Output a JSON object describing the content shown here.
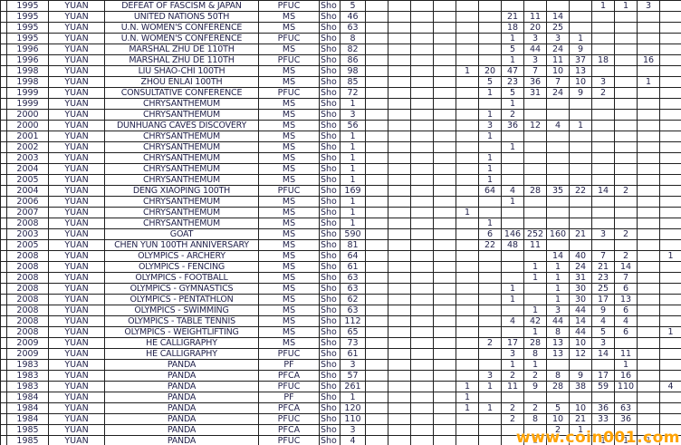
{
  "watermark": {
    "text": "www.coin001.com",
    "color": "#FFA200"
  },
  "table": {
    "currency_label": "YUAN",
    "sho_label": "Sho",
    "num_value_columns": 14,
    "type_codes_seen": [
      "PFUC",
      "MS",
      "PF",
      "PFCA"
    ],
    "rows": [
      {
        "year": "1995",
        "desc": "DEFEAT OF FASCISM & JAPAN",
        "type": "PFUC",
        "count": "5",
        "values": {
          "11": "1",
          "12": "1",
          "13": "3"
        }
      },
      {
        "year": "1995",
        "desc": "UNITED NATIONS 50TH",
        "type": "MS",
        "count": "46",
        "values": {
          "7": "21",
          "8": "11",
          "9": "14"
        }
      },
      {
        "year": "1995",
        "desc": "U.N. WOMEN'S CONFERENCE",
        "type": "MS",
        "count": "63",
        "values": {
          "7": "18",
          "8": "20",
          "9": "25"
        }
      },
      {
        "year": "1995",
        "desc": "U.N. WOMEN'S CONFERENCE",
        "type": "PFUC",
        "count": "8",
        "values": {
          "7": "1",
          "8": "3",
          "9": "3",
          "10": "1"
        }
      },
      {
        "year": "1996",
        "desc": "MARSHAL ZHU DE 110TH",
        "type": "MS",
        "count": "82",
        "values": {
          "7": "5",
          "8": "44",
          "9": "24",
          "10": "9"
        }
      },
      {
        "year": "1996",
        "desc": "MARSHAL ZHU DE 110TH",
        "type": "PFUC",
        "count": "86",
        "values": {
          "7": "1",
          "8": "3",
          "9": "11",
          "10": "37",
          "11": "18",
          "13": "16"
        }
      },
      {
        "year": "1998",
        "desc": "LIU SHAO-CHI 100TH",
        "type": "MS",
        "count": "98",
        "values": {
          "5": "1",
          "6": "20",
          "7": "47",
          "8": "7",
          "9": "10",
          "10": "13"
        }
      },
      {
        "year": "1998",
        "desc": "ZHOU ENLAI 100TH",
        "type": "MS",
        "count": "85",
        "values": {
          "6": "5",
          "7": "23",
          "8": "36",
          "9": "7",
          "10": "10",
          "11": "3",
          "13": "1"
        }
      },
      {
        "year": "1999",
        "desc": "CONSULTATIVE CONFERENCE",
        "type": "PFUC",
        "count": "72",
        "values": {
          "6": "1",
          "7": "5",
          "8": "31",
          "9": "24",
          "10": "9",
          "11": "2"
        }
      },
      {
        "year": "1999",
        "desc": "CHRYSANTHEMUM",
        "type": "MS",
        "count": "1",
        "values": {
          "7": "1"
        }
      },
      {
        "year": "2000",
        "desc": "CHRYSANTHEMUM",
        "type": "MS",
        "count": "3",
        "values": {
          "6": "1",
          "7": "2"
        }
      },
      {
        "year": "2000",
        "desc": "DUNHUANG CAVES DISCOVERY",
        "type": "MS",
        "count": "56",
        "values": {
          "6": "3",
          "7": "36",
          "8": "12",
          "9": "4",
          "10": "1"
        }
      },
      {
        "year": "2001",
        "desc": "CHRYSANTHEMUM",
        "type": "MS",
        "count": "1",
        "values": {
          "6": "1"
        }
      },
      {
        "year": "2002",
        "desc": "CHRYSANTHEMUM",
        "type": "MS",
        "count": "1",
        "values": {
          "7": "1"
        }
      },
      {
        "year": "2003",
        "desc": "CHRYSANTHEMUM",
        "type": "MS",
        "count": "1",
        "values": {
          "6": "1"
        }
      },
      {
        "year": "2004",
        "desc": "CHRYSANTHEMUM",
        "type": "MS",
        "count": "1",
        "values": {
          "6": "1"
        }
      },
      {
        "year": "2005",
        "desc": "CHRYSANTHEMUM",
        "type": "MS",
        "count": "1",
        "values": {
          "6": "1"
        }
      },
      {
        "year": "2004",
        "desc": "DENG XIAOPING 100TH",
        "type": "PFUC",
        "count": "169",
        "values": {
          "6": "64",
          "7": "4",
          "8": "28",
          "9": "35",
          "10": "22",
          "11": "14",
          "12": "2"
        }
      },
      {
        "year": "2006",
        "desc": "CHRYSANTHEMUM",
        "type": "MS",
        "count": "1",
        "values": {
          "7": "1"
        }
      },
      {
        "year": "2007",
        "desc": "CHRYSANTHEMUM",
        "type": "MS",
        "count": "1",
        "values": {
          "5": "1"
        }
      },
      {
        "year": "2008",
        "desc": "CHRYSANTHEMUM",
        "type": "MS",
        "count": "1",
        "values": {
          "6": "1"
        }
      },
      {
        "year": "2003",
        "desc": "GOAT",
        "type": "MS",
        "count": "590",
        "values": {
          "6": "6",
          "7": "146",
          "8": "252",
          "9": "160",
          "10": "21",
          "11": "3",
          "12": "2"
        }
      },
      {
        "year": "2005",
        "desc": "CHEN YUN 100TH ANNIVERSARY",
        "type": "MS",
        "count": "81",
        "values": {
          "6": "22",
          "7": "48",
          "8": "11"
        }
      },
      {
        "year": "2008",
        "desc": "OLYMPICS - ARCHERY",
        "type": "MS",
        "count": "64",
        "values": {
          "9": "14",
          "10": "40",
          "11": "7",
          "12": "2",
          "14": "1"
        }
      },
      {
        "year": "2008",
        "desc": "OLYMPICS - FENCING",
        "type": "MS",
        "count": "61",
        "values": {
          "8": "1",
          "9": "1",
          "10": "24",
          "11": "21",
          "12": "14"
        }
      },
      {
        "year": "2008",
        "desc": "OLYMPICS - FOOTBALL",
        "type": "MS",
        "count": "63",
        "values": {
          "8": "1",
          "9": "1",
          "10": "31",
          "11": "23",
          "12": "7"
        }
      },
      {
        "year": "2008",
        "desc": "OLYMPICS - GYMNASTICS",
        "type": "MS",
        "count": "63",
        "values": {
          "7": "1",
          "9": "1",
          "10": "30",
          "11": "25",
          "12": "6"
        }
      },
      {
        "year": "2008",
        "desc": "OLYMPICS - PENTATHLON",
        "type": "MS",
        "count": "62",
        "values": {
          "7": "1",
          "9": "1",
          "10": "30",
          "11": "17",
          "12": "13"
        }
      },
      {
        "year": "2008",
        "desc": "OLYMPICS - SWIMMING",
        "type": "MS",
        "count": "63",
        "values": {
          "8": "1",
          "9": "3",
          "10": "44",
          "11": "9",
          "12": "6"
        }
      },
      {
        "year": "2008",
        "desc": "OLYMPICS - TABLE TENNIS",
        "type": "MS",
        "count": "112",
        "values": {
          "7": "4",
          "8": "42",
          "9": "44",
          "10": "14",
          "11": "4",
          "12": "4"
        }
      },
      {
        "year": "2008",
        "desc": "OLYMPICS - WEIGHTLIFTING",
        "type": "MS",
        "count": "65",
        "values": {
          "8": "1",
          "9": "8",
          "10": "44",
          "11": "5",
          "12": "6",
          "14": "1"
        }
      },
      {
        "year": "2009",
        "desc": "HE CALLIGRAPHY",
        "type": "MS",
        "count": "73",
        "values": {
          "6": "2",
          "7": "17",
          "8": "28",
          "9": "13",
          "10": "10",
          "11": "3"
        }
      },
      {
        "year": "2009",
        "desc": "HE CALLIGRAPHY",
        "type": "PFUC",
        "count": "61",
        "values": {
          "7": "3",
          "8": "8",
          "9": "13",
          "10": "12",
          "11": "14",
          "12": "11"
        }
      },
      {
        "year": "1983",
        "desc": "PANDA",
        "type": "PF",
        "count": "3",
        "values": {
          "7": "1",
          "8": "1",
          "12": "1"
        }
      },
      {
        "year": "1983",
        "desc": "PANDA",
        "type": "PFCA",
        "count": "57",
        "values": {
          "6": "3",
          "7": "2",
          "8": "2",
          "9": "8",
          "10": "9",
          "11": "17",
          "12": "16"
        }
      },
      {
        "year": "1983",
        "desc": "PANDA",
        "type": "PFUC",
        "count": "261",
        "values": {
          "5": "1",
          "6": "1",
          "7": "11",
          "8": "9",
          "9": "28",
          "10": "38",
          "11": "59",
          "12": "110",
          "14": "4"
        }
      },
      {
        "year": "1984",
        "desc": "PANDA",
        "type": "PF",
        "count": "1",
        "values": {
          "5": "1"
        }
      },
      {
        "year": "1984",
        "desc": "PANDA",
        "type": "PFCA",
        "count": "120",
        "values": {
          "5": "1",
          "6": "1",
          "7": "2",
          "8": "2",
          "9": "5",
          "10": "10",
          "11": "36",
          "12": "63"
        }
      },
      {
        "year": "1984",
        "desc": "PANDA",
        "type": "PFUC",
        "count": "110",
        "values": {
          "7": "2",
          "8": "8",
          "9": "10",
          "10": "21",
          "11": "33",
          "12": "36"
        }
      },
      {
        "year": "1985",
        "desc": "PANDA",
        "type": "PFCA",
        "count": "3",
        "values": {
          "9": "2",
          "10": "1"
        }
      },
      {
        "year": "1985",
        "desc": "PANDA",
        "type": "PFUC",
        "count": "4",
        "values": {
          "8": "1",
          "11": "1",
          "12": "1",
          "13": "1"
        }
      }
    ]
  }
}
